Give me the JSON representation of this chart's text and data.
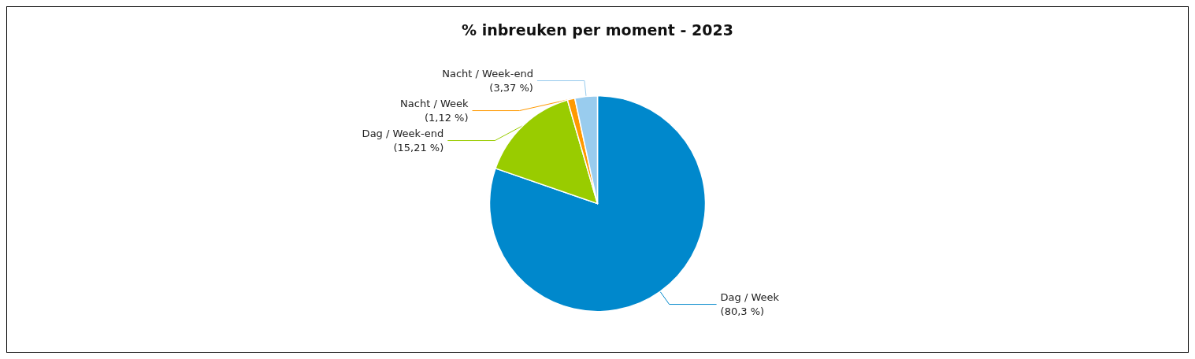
{
  "chart_data": {
    "type": "pie",
    "title": "% inbreuken per moment - 2023",
    "categories": [
      "Dag / Week",
      "Dag / Week-end",
      "Nacht / Week",
      "Nacht / Week-end"
    ],
    "values": [
      80.3,
      15.21,
      1.12,
      3.37
    ],
    "value_labels": [
      "(80,3 %)",
      "(15,21 %)",
      "(1,12 %)",
      "(3,37 %)"
    ],
    "colors": [
      "#0088cc",
      "#99cc00",
      "#ff9900",
      "#99ccee"
    ],
    "legend": false
  }
}
